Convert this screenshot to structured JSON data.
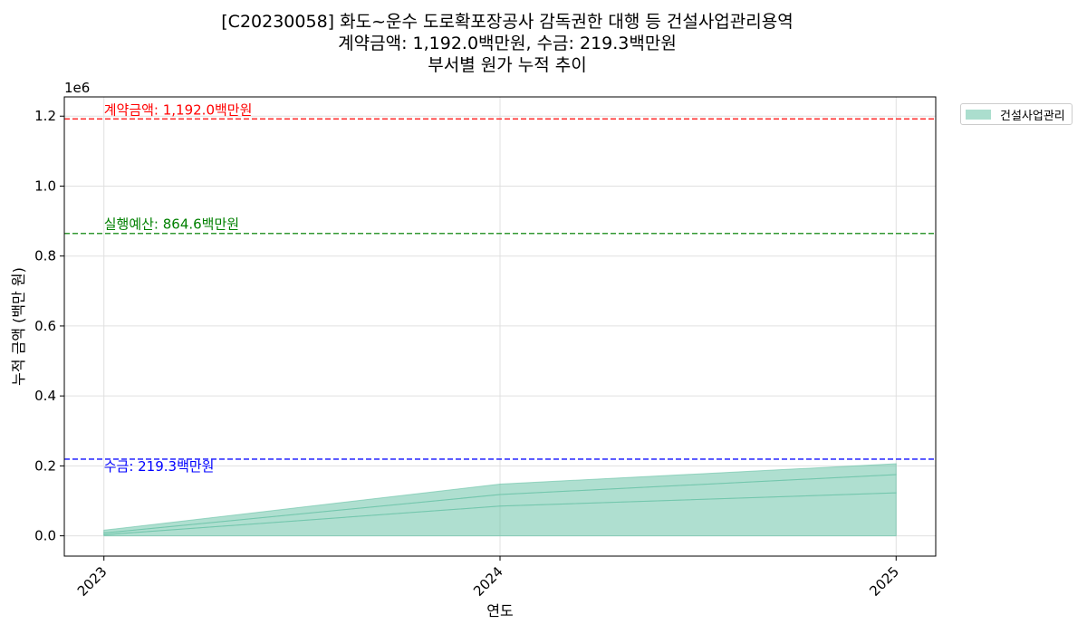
{
  "chart_data": {
    "type": "area",
    "title_lines": [
      "[C20230058] 화도~운수 도로확포장공사 감독권한 대행 등 건설사업관리용역",
      "계약금액: 1,192.0백만원, 수금: 219.3백만원",
      "부서별 원가 누적 추이"
    ],
    "xlabel": "연도",
    "ylabel": "누적 금액 (백만 원)",
    "y_offset_text": "1e6",
    "x_categories": [
      "2023",
      "2024",
      "2025"
    ],
    "x_range": [
      2022.9,
      2025.1
    ],
    "ylim": [
      -58000,
      1255000
    ],
    "yticks": [
      0,
      200000,
      400000,
      600000,
      800000,
      1000000,
      1200000
    ],
    "ytick_labels": [
      "0.0",
      "0.2",
      "0.4",
      "0.6",
      "0.8",
      "1.0",
      "1.2"
    ],
    "grid": true,
    "series": [
      {
        "name": "건설사업관리",
        "color": "#66c2a5",
        "x": [
          2023,
          2024,
          2025
        ],
        "layers": [
          [
            0,
            0,
            0
          ],
          [
            3000,
            85000,
            123000
          ],
          [
            8000,
            118000,
            175000
          ],
          [
            16000,
            148000,
            206000
          ]
        ]
      }
    ],
    "reference_lines": [
      {
        "label": "계약금액: 1,192.0백만원",
        "value": 1192000,
        "color": "#ff0000"
      },
      {
        "label": "실행예산: 864.6백만원",
        "value": 864600,
        "color": "#008000"
      },
      {
        "label": "수금: 219.3백만원",
        "value": 219300,
        "color": "#0000ff"
      }
    ],
    "legend_position": "outside-top-right"
  }
}
